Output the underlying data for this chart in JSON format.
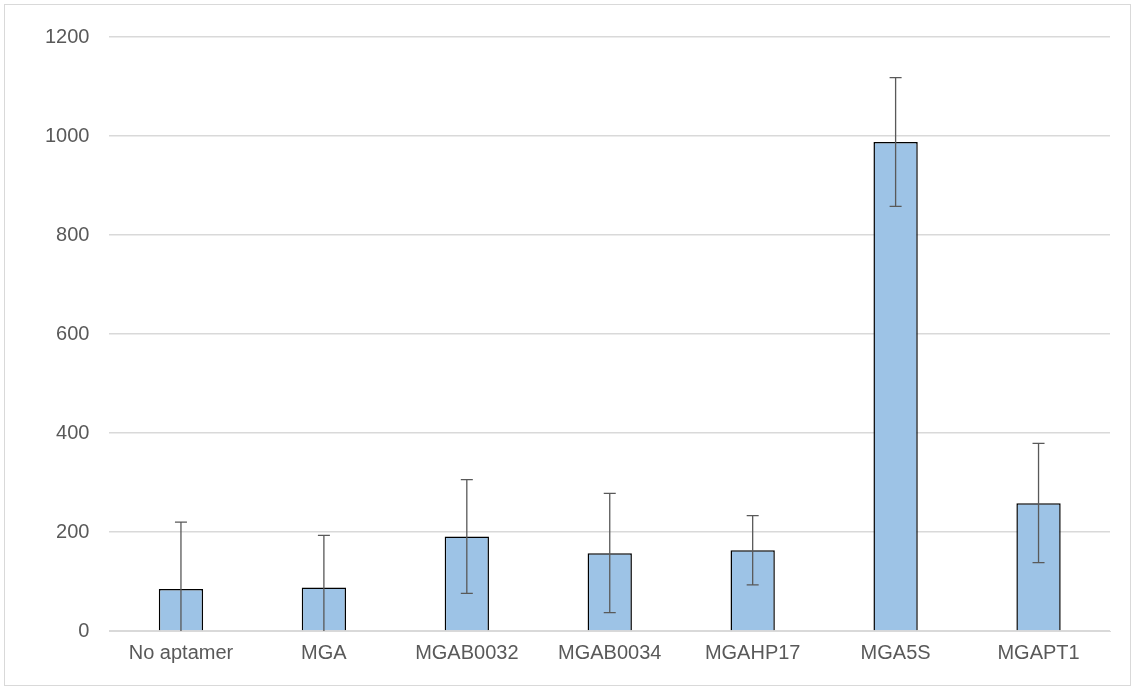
{
  "chart_data": {
    "type": "bar",
    "categories": [
      "No aptamer",
      "MGA",
      "MGAB0032",
      "MGAB0034",
      "MGAHP17",
      "MGA5S",
      "MGAPT1"
    ],
    "values": [
      85,
      88,
      191,
      157,
      163,
      988,
      258
    ],
    "errors": [
      [
        0,
        220
      ],
      [
        0,
        193
      ],
      [
        76,
        306
      ],
      [
        37,
        278
      ],
      [
        93,
        233
      ],
      [
        858,
        1118
      ],
      [
        138,
        379
      ]
    ],
    "color": "#9dc3e6",
    "ylim": [
      0,
      1200
    ],
    "yticks": [
      0,
      200,
      400,
      600,
      800,
      1000,
      1200
    ],
    "grid": "y",
    "legend": false
  }
}
